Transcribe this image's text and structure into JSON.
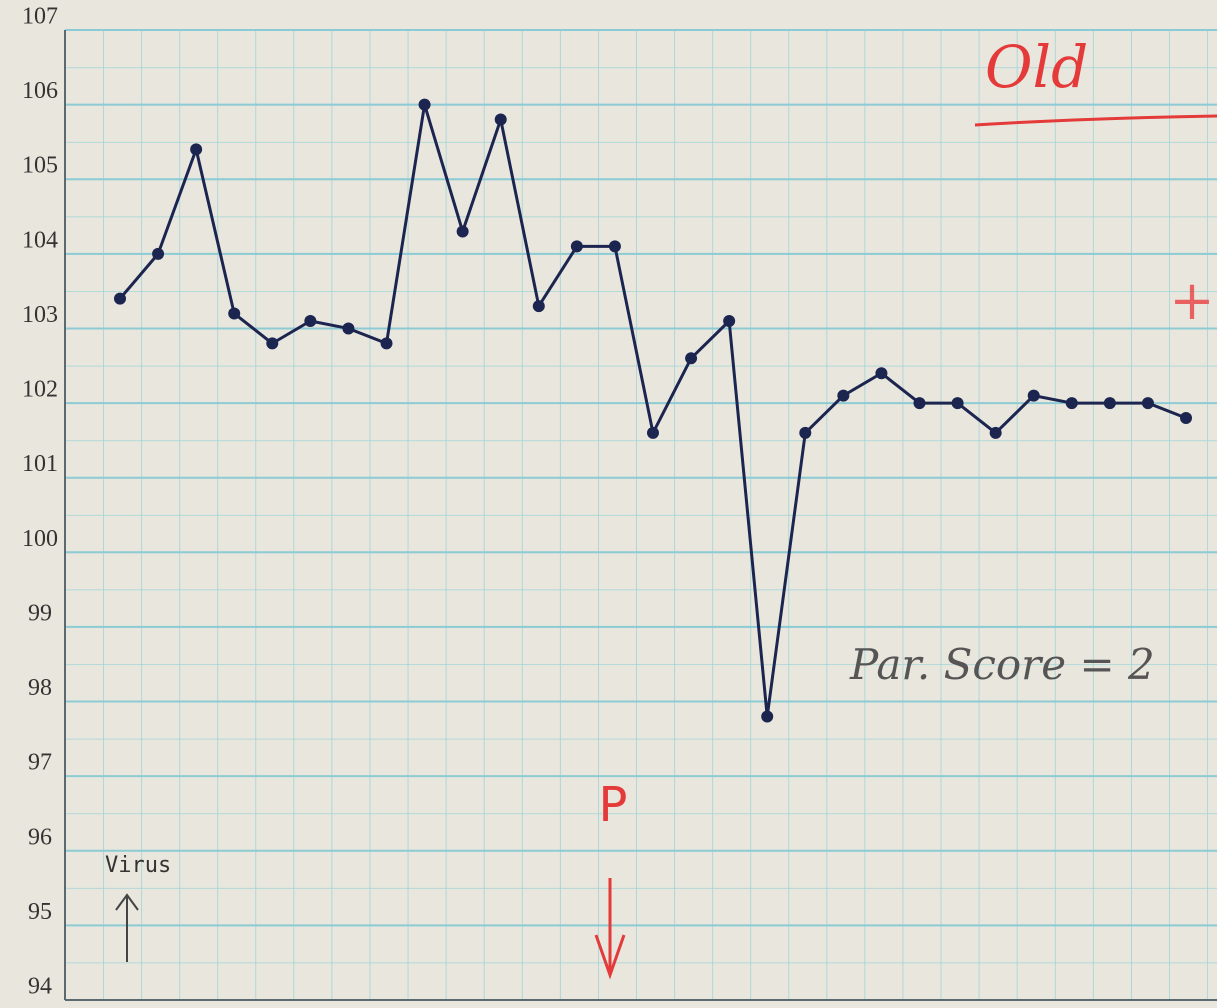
{
  "chart_data": {
    "type": "line",
    "categories": [
      null,
      null,
      null,
      null,
      null,
      null,
      null,
      null,
      null,
      null,
      null,
      null,
      null,
      null,
      null,
      null,
      null,
      null,
      null,
      null,
      null,
      null,
      null,
      null,
      null,
      null,
      null,
      null,
      null
    ],
    "series": [
      {
        "color": "#1c2550",
        "values": [
          103.4,
          104.0,
          105.4,
          103.2,
          102.8,
          103.1,
          103.0,
          102.8,
          106.0,
          104.3,
          105.8,
          103.3,
          104.1,
          104.1,
          101.6,
          102.6,
          103.1,
          97.8,
          101.6,
          102.1,
          102.4,
          102.0,
          102.0,
          101.6,
          102.1,
          102.0,
          102.0,
          102.0,
          101.8
        ]
      }
    ],
    "ylim": [
      94,
      107
    ],
    "yticks": [
      94,
      95,
      96,
      97,
      98,
      99,
      100,
      101,
      102,
      103,
      104,
      105,
      106,
      107
    ],
    "grid": true,
    "annotations": [
      "Old",
      "+",
      "Par. Score = 2",
      "Virus",
      "P"
    ]
  }
}
